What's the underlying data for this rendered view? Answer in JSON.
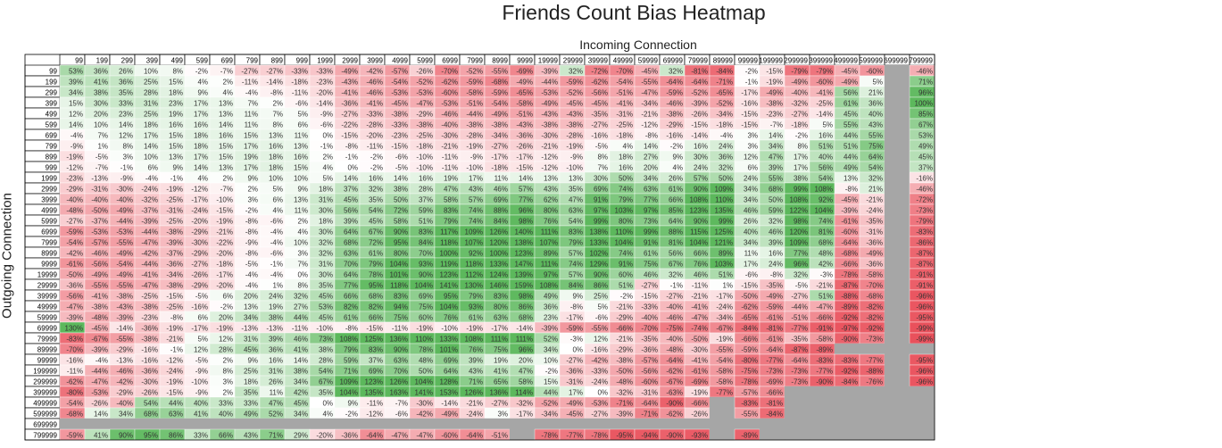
{
  "chart_data": {
    "type": "heatmap",
    "title": "Friends Count Bias Heatmap",
    "xlabel": "Incoming Connection",
    "ylabel": "Outgoing Connection",
    "columns": [
      "99",
      "199",
      "299",
      "399",
      "499",
      "599",
      "699",
      "799",
      "899",
      "999",
      "1999",
      "2999",
      "3999",
      "4999",
      "5999",
      "6999",
      "7999",
      "8999",
      "9999",
      "19999",
      "29999",
      "39999",
      "49999",
      "59999",
      "69999",
      "79999",
      "89999",
      "99999",
      "199999",
      "299999",
      "399999",
      "499999",
      "599999",
      "699999",
      "799999"
    ],
    "rows": [
      "99",
      "199",
      "299",
      "399",
      "499",
      "599",
      "699",
      "799",
      "899",
      "999",
      "1999",
      "2999",
      "3999",
      "4999",
      "5999",
      "6999",
      "7999",
      "8999",
      "9999",
      "19999",
      "29999",
      "39999",
      "49999",
      "59999",
      "69999",
      "79999",
      "89999",
      "99999",
      "199999",
      "299999",
      "399999",
      "499999",
      "599999",
      "699999",
      "799999"
    ],
    "values": [
      [
        53,
        36,
        26,
        10,
        8,
        -2,
        -7,
        -27,
        -27,
        -33,
        -33,
        -49,
        -42,
        -57,
        -26,
        -70,
        -52,
        -55,
        -69,
        -39,
        32,
        -72,
        -70,
        -45,
        32,
        -81,
        -84,
        -2,
        -15,
        -79,
        -79,
        -45,
        -60,
        null,
        -46
      ],
      [
        39,
        41,
        36,
        25,
        15,
        4,
        2,
        -11,
        -14,
        -18,
        -23,
        -43,
        -46,
        -54,
        -52,
        -62,
        -59,
        -68,
        -49,
        -44,
        -59,
        -62,
        -54,
        -55,
        -64,
        -64,
        -71,
        -1,
        -19,
        -49,
        -60,
        -49,
        5,
        null,
        71
      ],
      [
        34,
        38,
        35,
        28,
        18,
        9,
        4,
        -4,
        -8,
        -11,
        -20,
        -41,
        -46,
        -53,
        -53,
        -60,
        -58,
        -59,
        -65,
        -53,
        -52,
        -56,
        -51,
        -47,
        -59,
        -52,
        -65,
        -17,
        -49,
        -40,
        -41,
        56,
        21,
        null,
        96
      ],
      [
        15,
        30,
        33,
        31,
        23,
        17,
        13,
        7,
        2,
        -6,
        -14,
        -36,
        -41,
        -45,
        -47,
        -53,
        -51,
        -54,
        -58,
        -49,
        -45,
        -45,
        -41,
        -34,
        -46,
        -39,
        -52,
        -16,
        -38,
        -32,
        -25,
        61,
        36,
        null,
        100
      ],
      [
        12,
        20,
        23,
        25,
        19,
        17,
        13,
        11,
        7,
        5,
        -9,
        -27,
        -33,
        -38,
        -29,
        -46,
        -44,
        -49,
        -51,
        -43,
        -43,
        -35,
        -31,
        -21,
        -38,
        -26,
        -34,
        -15,
        -23,
        -27,
        -14,
        45,
        40,
        null,
        85
      ],
      [
        14,
        10,
        14,
        18,
        16,
        16,
        14,
        11,
        8,
        6,
        -6,
        -22,
        -28,
        -33,
        -38,
        -40,
        -38,
        -38,
        -43,
        -38,
        -38,
        -27,
        -25,
        -12,
        -29,
        -15,
        -18,
        -15,
        -7,
        -18,
        5,
        55,
        43,
        null,
        67
      ],
      [
        -4,
        7,
        12,
        17,
        15,
        18,
        16,
        15,
        13,
        11,
        0,
        -15,
        -20,
        -23,
        -25,
        -30,
        -28,
        -34,
        -36,
        -30,
        -28,
        -16,
        -18,
        -8,
        -16,
        -14,
        -4,
        3,
        14,
        -2,
        16,
        44,
        55,
        null,
        53
      ],
      [
        -9,
        1,
        8,
        14,
        15,
        18,
        15,
        17,
        16,
        13,
        -1,
        -8,
        -11,
        -15,
        -18,
        -21,
        -19,
        -27,
        -26,
        -21,
        -19,
        -5,
        4,
        14,
        -2,
        16,
        24,
        3,
        34,
        8,
        51,
        51,
        75,
        null,
        49
      ],
      [
        -19,
        -5,
        3,
        10,
        13,
        17,
        15,
        19,
        18,
        16,
        2,
        -1,
        -2,
        -6,
        -10,
        -11,
        -9,
        -17,
        -17,
        -12,
        -9,
        8,
        18,
        27,
        9,
        30,
        36,
        12,
        47,
        17,
        40,
        44,
        64,
        null,
        45
      ],
      [
        -12,
        -7,
        -1,
        6,
        9,
        14,
        13,
        17,
        18,
        15,
        4,
        0,
        -2,
        -5,
        -10,
        -11,
        -10,
        -18,
        -15,
        -12,
        -10,
        7,
        16,
        20,
        4,
        24,
        32,
        6,
        39,
        17,
        56,
        49,
        54,
        null,
        37
      ],
      [
        -23,
        -13,
        -9,
        -4,
        -1,
        4,
        2,
        9,
        10,
        10,
        5,
        14,
        16,
        14,
        16,
        19,
        17,
        11,
        14,
        13,
        13,
        30,
        50,
        34,
        26,
        57,
        50,
        24,
        55,
        38,
        54,
        13,
        32,
        null,
        -16
      ],
      [
        -29,
        -31,
        -30,
        -24,
        -19,
        -12,
        -7,
        2,
        5,
        9,
        18,
        37,
        32,
        38,
        28,
        47,
        43,
        46,
        57,
        43,
        35,
        69,
        74,
        63,
        61,
        90,
        109,
        34,
        68,
        99,
        108,
        -8,
        21,
        null,
        -46
      ],
      [
        -40,
        -40,
        -40,
        -32,
        -25,
        -17,
        -10,
        3,
        6,
        13,
        31,
        45,
        35,
        50,
        37,
        58,
        57,
        69,
        77,
        62,
        47,
        91,
        79,
        77,
        66,
        108,
        110,
        34,
        50,
        108,
        92,
        -45,
        -21,
        null,
        -72
      ],
      [
        -48,
        -50,
        -49,
        -37,
        -31,
        -24,
        -15,
        -2,
        4,
        11,
        30,
        56,
        54,
        72,
        59,
        83,
        74,
        88,
        96,
        80,
        63,
        97,
        103,
        97,
        85,
        123,
        135,
        46,
        59,
        122,
        104,
        -39,
        -24,
        null,
        -73
      ],
      [
        -27,
        -37,
        -44,
        -39,
        -25,
        -20,
        -19,
        -8,
        -6,
        2,
        18,
        39,
        45,
        58,
        51,
        79,
        74,
        84,
        98,
        76,
        54,
        99,
        80,
        73,
        64,
        90,
        99,
        26,
        32,
        98,
        74,
        -61,
        -35,
        null,
        -79
      ],
      [
        -59,
        -53,
        -53,
        -44,
        -38,
        -29,
        -21,
        -8,
        -4,
        4,
        30,
        64,
        67,
        90,
        83,
        117,
        109,
        126,
        140,
        111,
        83,
        138,
        110,
        99,
        88,
        115,
        125,
        40,
        46,
        120,
        81,
        -60,
        -31,
        null,
        -83
      ],
      [
        -54,
        -57,
        -55,
        -47,
        -39,
        -30,
        -22,
        -9,
        -4,
        10,
        32,
        68,
        72,
        95,
        84,
        118,
        107,
        120,
        138,
        107,
        79,
        133,
        104,
        91,
        81,
        104,
        121,
        34,
        39,
        109,
        68,
        -64,
        -36,
        null,
        -86
      ],
      [
        -42,
        -46,
        -49,
        -42,
        -37,
        -29,
        -20,
        -8,
        -6,
        3,
        32,
        63,
        61,
        80,
        70,
        100,
        92,
        100,
        123,
        89,
        57,
        102,
        74,
        61,
        56,
        66,
        89,
        11,
        16,
        77,
        48,
        -68,
        -49,
        null,
        -87
      ],
      [
        -61,
        -56,
        -54,
        -44,
        -36,
        -27,
        -18,
        -5,
        -1,
        7,
        31,
        70,
        79,
        104,
        93,
        119,
        118,
        133,
        147,
        111,
        74,
        129,
        91,
        75,
        67,
        76,
        103,
        17,
        24,
        96,
        42,
        -66,
        -36,
        null,
        -87
      ],
      [
        -50,
        -49,
        -49,
        -41,
        -34,
        -26,
        -17,
        -4,
        -4,
        0,
        30,
        64,
        78,
        101,
        90,
        123,
        112,
        124,
        139,
        97,
        57,
        90,
        60,
        46,
        32,
        46,
        51,
        -6,
        -8,
        32,
        -3,
        -78,
        -58,
        null,
        -91
      ],
      [
        -36,
        -55,
        -55,
        -47,
        -38,
        -29,
        -20,
        -4,
        1,
        8,
        35,
        77,
        95,
        118,
        104,
        141,
        130,
        146,
        159,
        108,
        84,
        86,
        51,
        -27,
        -1,
        -11,
        1,
        -15,
        -35,
        -5,
        -21,
        -87,
        -70,
        null,
        -91
      ],
      [
        -56,
        -41,
        -38,
        -25,
        -15,
        -5,
        6,
        20,
        24,
        32,
        45,
        66,
        68,
        83,
        69,
        95,
        79,
        83,
        98,
        49,
        9,
        25,
        -2,
        -15,
        -27,
        -21,
        -17,
        -50,
        -49,
        -27,
        51,
        -88,
        -68,
        null,
        -96
      ],
      [
        -47,
        -38,
        -43,
        -38,
        -25,
        -16,
        -2,
        13,
        19,
        27,
        53,
        82,
        82,
        94,
        75,
        104,
        93,
        80,
        86,
        36,
        -8,
        5,
        -21,
        -33,
        -40,
        -41,
        -24,
        -62,
        -59,
        -44,
        -47,
        -89,
        -82,
        null,
        -96
      ],
      [
        -39,
        -48,
        -39,
        -23,
        -8,
        6,
        20,
        34,
        38,
        44,
        45,
        61,
        66,
        75,
        60,
        76,
        61,
        63,
        68,
        23,
        -17,
        -6,
        -29,
        -40,
        -46,
        -47,
        -34,
        -65,
        -61,
        -51,
        -66,
        -92,
        -82,
        null,
        -95
      ],
      [
        130,
        -45,
        -14,
        -36,
        -19,
        -17,
        -19,
        -13,
        -13,
        -11,
        -10,
        -8,
        -15,
        -11,
        -19,
        -10,
        -19,
        -17,
        -14,
        -39,
        -59,
        -55,
        -66,
        -70,
        -75,
        -74,
        -67,
        -84,
        -81,
        -77,
        -91,
        -97,
        -92,
        null,
        -99
      ],
      [
        -83,
        -67,
        -55,
        -38,
        -21,
        5,
        12,
        31,
        39,
        46,
        73,
        108,
        125,
        136,
        110,
        133,
        108,
        111,
        111,
        52,
        -3,
        12,
        -21,
        -35,
        -40,
        -50,
        -19,
        -66,
        -61,
        -35,
        -58,
        -90,
        -73,
        null,
        -99
      ],
      [
        -70,
        -39,
        -29,
        -16,
        -1,
        12,
        28,
        45,
        36,
        41,
        38,
        79,
        83,
        90,
        78,
        101,
        76,
        75,
        96,
        34,
        0,
        -16,
        -29,
        -36,
        -48,
        -30,
        -55,
        -59,
        -64,
        -87,
        -89,
        null,
        null,
        null,
        null
      ],
      [
        -16,
        -4,
        -13,
        -16,
        -12,
        -5,
        2,
        9,
        16,
        14,
        28,
        59,
        37,
        63,
        48,
        69,
        39,
        19,
        20,
        10,
        -27,
        -42,
        -38,
        -57,
        -64,
        -41,
        -54,
        -80,
        -77,
        -64,
        -83,
        -83,
        -77,
        null,
        -95
      ],
      [
        -11,
        -44,
        -46,
        -36,
        -24,
        -9,
        8,
        25,
        31,
        38,
        54,
        71,
        69,
        70,
        50,
        64,
        43,
        41,
        47,
        -2,
        -36,
        -33,
        -50,
        -56,
        -62,
        -61,
        -58,
        -75,
        -73,
        -73,
        -77,
        -92,
        -88,
        null,
        -96
      ],
      [
        -62,
        -47,
        -42,
        -30,
        -19,
        -10,
        3,
        18,
        26,
        34,
        67,
        109,
        123,
        126,
        104,
        128,
        71,
        65,
        58,
        15,
        -31,
        -24,
        -48,
        -60,
        -67,
        -69,
        -58,
        -78,
        -69,
        -73,
        -90,
        -84,
        -76,
        null,
        -96
      ],
      [
        -80,
        -53,
        -29,
        -26,
        -15,
        -9,
        2,
        35,
        11,
        42,
        35,
        104,
        135,
        163,
        141,
        153,
        126,
        136,
        114,
        44,
        17,
        0,
        -32,
        -31,
        -63,
        -19,
        -77,
        -57,
        -66,
        null,
        null,
        null,
        null,
        null,
        null
      ],
      [
        -54,
        -26,
        -40,
        54,
        44,
        40,
        33,
        33,
        47,
        45,
        0,
        9,
        -11,
        -7,
        -30,
        -14,
        -21,
        -27,
        -32,
        -52,
        -49,
        -53,
        -71,
        -64,
        -90,
        -66,
        null,
        -83,
        -81,
        null,
        null,
        null,
        null,
        null,
        null
      ],
      [
        -68,
        14,
        34,
        68,
        63,
        41,
        40,
        49,
        52,
        34,
        4,
        -2,
        -12,
        -6,
        -42,
        -49,
        -24,
        3,
        -17,
        -34,
        -45,
        -27,
        -39,
        -71,
        -62,
        -26,
        null,
        -55,
        -84,
        null,
        null,
        null,
        null,
        null,
        null
      ],
      [
        null,
        null,
        null,
        null,
        null,
        null,
        null,
        null,
        null,
        null,
        null,
        null,
        null,
        null,
        null,
        null,
        null,
        null,
        null,
        null,
        null,
        null,
        null,
        null,
        null,
        null,
        null,
        null,
        null,
        null,
        null,
        null,
        null,
        null,
        null
      ],
      [
        -59,
        41,
        90,
        95,
        86,
        33,
        66,
        43,
        71,
        29,
        -20,
        -36,
        -64,
        -47,
        -47,
        -60,
        -64,
        -51,
        null,
        -78,
        -77,
        -78,
        -95,
        -94,
        -90,
        -93,
        null,
        -89,
        null,
        null,
        null,
        null,
        null,
        null,
        null
      ]
    ],
    "value_format": "percent",
    "colors": {
      "positive": "#5cb85c",
      "negative": "#e94f5a",
      "neutral": "#ffffff",
      "missing": "#a6a6a6"
    }
  }
}
